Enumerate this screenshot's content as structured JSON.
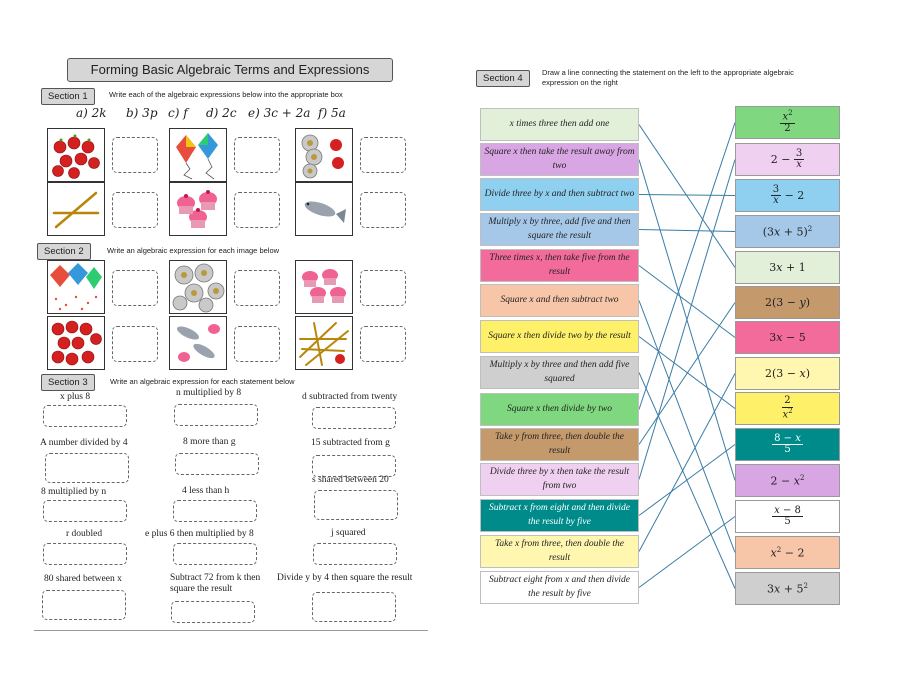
{
  "worksheet": {
    "title": "Forming Basic Algebraic Terms and Expressions",
    "section1": {
      "label": "Section 1",
      "instruction": "Write each of the algebraic expressions below into the appropriate box",
      "expressions": [
        "a) 2k",
        "b) 3p",
        "c) f",
        "d) 2c",
        "e) 3c + 2a",
        "f) 5a"
      ],
      "pictures": [
        "apples-icon",
        "kites-icon",
        "coins-and-apples-icon",
        "sticks-icon",
        "cupcakes-icon",
        "fish-icon"
      ]
    },
    "section2": {
      "label": "Section 2",
      "instruction": "Write an algebraic expression for each image below",
      "pictures": [
        "kites-and-dots-icon",
        "coins-icon",
        "cupcakes-icon",
        "apples-icon",
        "fish-and-cupcakes-icon",
        "sticks-and-apple-icon"
      ]
    },
    "section3": {
      "label": "Section 3",
      "instruction": "Write an algebraic expression for each statement below",
      "statements": [
        [
          "x plus 8",
          "n multiplied by 8",
          "d subtracted from twenty"
        ],
        [
          "A number divided by 4",
          "8 more than g",
          "15 subtracted from g"
        ],
        [
          "8 multiplied by n",
          "4 less than h",
          "s shared between 20"
        ],
        [
          "r doubled",
          "e plus 6 then multiplied by 8",
          "j squared"
        ],
        [
          "80 shared between x",
          "Subtract 72 from k then square the result",
          "Divide y by 4 then square the result"
        ]
      ]
    }
  },
  "matching": {
    "label": "Section 4",
    "instruction": "Draw a line connecting the statement on the left to the appropriate algebraic expression on the right",
    "statements": [
      {
        "text": "x times three then add one",
        "color": "#e2f0d9"
      },
      {
        "text": "Square x then take the result away from two",
        "color": "#d9a6e4"
      },
      {
        "text": "Divide three by x and then subtract two",
        "color": "#8fd0f0"
      },
      {
        "text": "Multiply x by three, add five and then square the result",
        "color": "#a6c8e8"
      },
      {
        "text": "Three times x, then take five from the result",
        "color": "#f26b9a"
      },
      {
        "text": "Square x and then subtract two",
        "color": "#f7c6a9"
      },
      {
        "text": "Square x then divide two by the result",
        "color": "#fff06a"
      },
      {
        "text": "Multiply x by three and then add five squared",
        "color": "#cfcfcf"
      },
      {
        "text": "Square x then divide by two",
        "color": "#7fd87f"
      },
      {
        "text": "Take y from three, then double the result",
        "color": "#c49a6c"
      },
      {
        "text": "Divide three by x then take the result from two",
        "color": "#f0d0f0"
      },
      {
        "text": "Subtract x from eight and then divide the result by five",
        "color": "#008b8b"
      },
      {
        "text": "Take x from three, then double the result",
        "color": "#fff7b0"
      },
      {
        "text": "Subtract eight from x and then divide the result by five",
        "color": "#ffffff"
      }
    ],
    "expressions": [
      {
        "text": "x²/2",
        "color": "#7fd87f"
      },
      {
        "text": "2 − 3/x",
        "color": "#f0d0f0"
      },
      {
        "text": "3/x − 2",
        "color": "#8fd0f0"
      },
      {
        "text": "(3x + 5)²",
        "color": "#a6c8e8"
      },
      {
        "text": "3x + 1",
        "color": "#e2f0d9"
      },
      {
        "text": "2(3 − y)",
        "color": "#c49a6c"
      },
      {
        "text": "3x − 5",
        "color": "#f26b9a"
      },
      {
        "text": "2(3 − x)",
        "color": "#fff7b0"
      },
      {
        "text": "2/x²",
        "color": "#fff06a"
      },
      {
        "text": "(8 − x)/5",
        "color": "#008b8b"
      },
      {
        "text": "2 − x²",
        "color": "#d9a6e4"
      },
      {
        "text": "(x − 8)/5",
        "color": "#ffffff"
      },
      {
        "text": "x² − 2",
        "color": "#f7c6a9"
      },
      {
        "text": "3x + 5²",
        "color": "#cfcfcf"
      }
    ],
    "connections": [
      [
        0,
        4
      ],
      [
        1,
        10
      ],
      [
        2,
        2
      ],
      [
        3,
        3
      ],
      [
        4,
        6
      ],
      [
        5,
        12
      ],
      [
        6,
        8
      ],
      [
        7,
        13
      ],
      [
        8,
        0
      ],
      [
        9,
        5
      ],
      [
        10,
        1
      ],
      [
        11,
        9
      ],
      [
        12,
        7
      ],
      [
        13,
        11
      ]
    ]
  }
}
